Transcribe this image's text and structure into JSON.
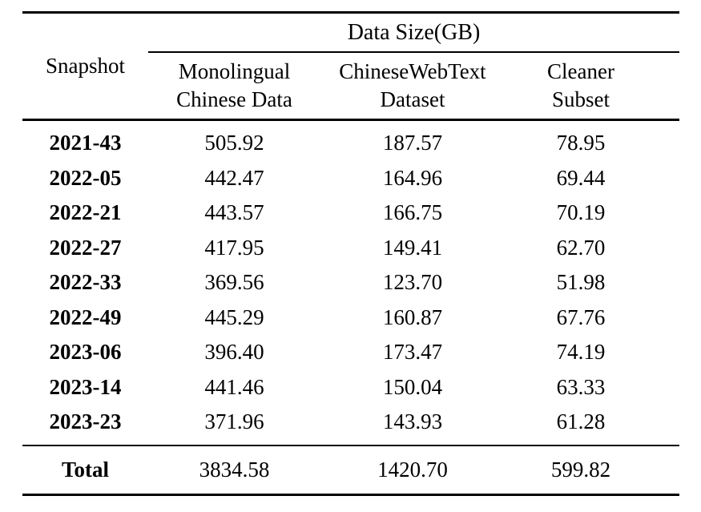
{
  "table": {
    "group_header": "Data Size(GB)",
    "snapshot_header": "Snapshot",
    "columns": [
      {
        "line1": "Monolingual",
        "line2": "Chinese Data"
      },
      {
        "line1": "ChineseWebText",
        "line2": "Dataset"
      },
      {
        "line1": "Cleaner",
        "line2": "Subset"
      }
    ],
    "rows": [
      {
        "snapshot": "2021-43",
        "monolingual": "505.92",
        "chinesewebtext": "187.57",
        "cleaner": "78.95"
      },
      {
        "snapshot": "2022-05",
        "monolingual": "442.47",
        "chinesewebtext": "164.96",
        "cleaner": "69.44"
      },
      {
        "snapshot": "2022-21",
        "monolingual": "443.57",
        "chinesewebtext": "166.75",
        "cleaner": "70.19"
      },
      {
        "snapshot": "2022-27",
        "monolingual": "417.95",
        "chinesewebtext": "149.41",
        "cleaner": "62.70"
      },
      {
        "snapshot": "2022-33",
        "monolingual": "369.56",
        "chinesewebtext": "123.70",
        "cleaner": "51.98"
      },
      {
        "snapshot": "2022-49",
        "monolingual": "445.29",
        "chinesewebtext": "160.87",
        "cleaner": "67.76"
      },
      {
        "snapshot": "2023-06",
        "monolingual": "396.40",
        "chinesewebtext": "173.47",
        "cleaner": "74.19"
      },
      {
        "snapshot": "2023-14",
        "monolingual": "441.46",
        "chinesewebtext": "150.04",
        "cleaner": "63.33"
      },
      {
        "snapshot": "2023-23",
        "monolingual": "371.96",
        "chinesewebtext": "143.93",
        "cleaner": "61.28"
      }
    ],
    "total": {
      "label": "Total",
      "monolingual": "3834.58",
      "chinesewebtext": "1420.70",
      "cleaner": "599.82"
    },
    "colors": {
      "text": "#000000",
      "background": "#ffffff",
      "rule": "#000000"
    }
  }
}
